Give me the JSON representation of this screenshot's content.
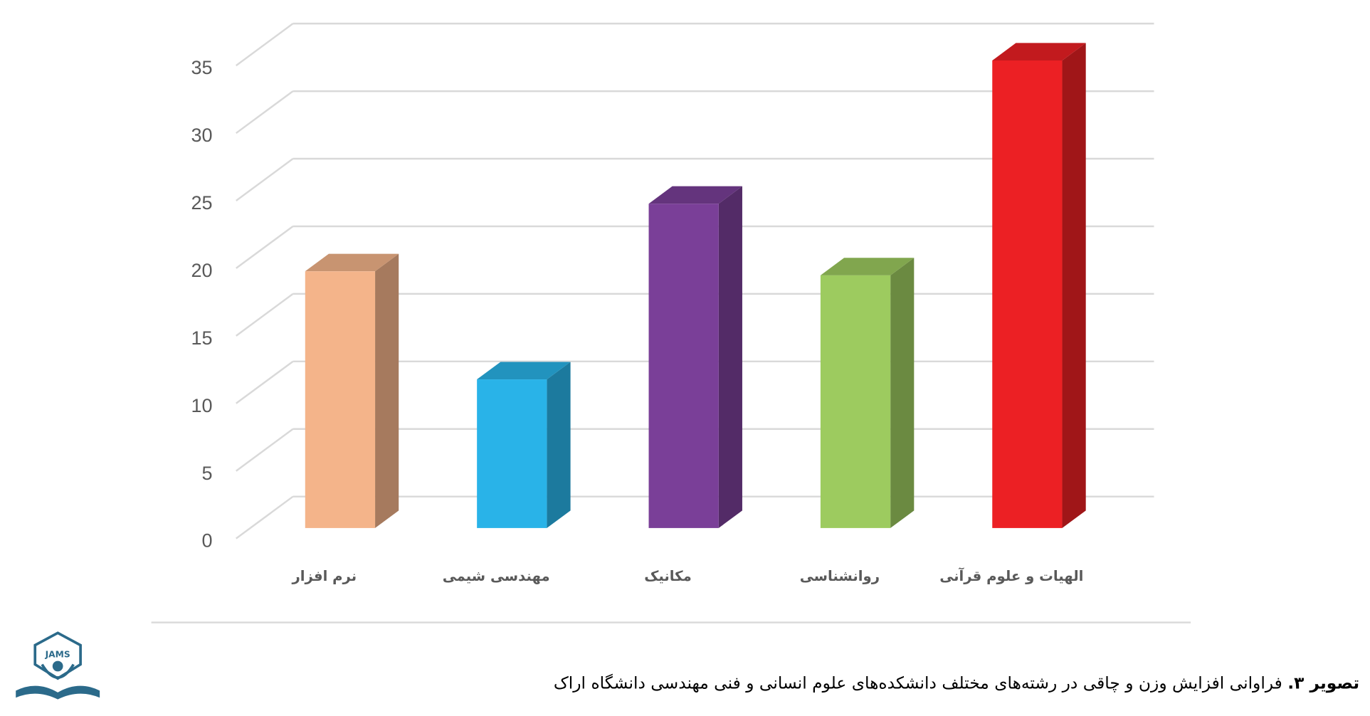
{
  "chart_data": {
    "type": "bar",
    "categories": [
      "نرم افزار",
      "مهندسی شیمی",
      "مکانیک",
      "روانشناسی",
      "الهیات و علوم قرآنی"
    ],
    "values": [
      19,
      11,
      24,
      18.7,
      34.6
    ],
    "colors": [
      "#f4b48a",
      "#29b3e8",
      "#7a3f98",
      "#9dcb5f",
      "#ec2024"
    ],
    "ylim": [
      0,
      35
    ],
    "yticks": [
      0,
      5,
      10,
      15,
      20,
      25,
      30,
      35
    ],
    "grid": true
  },
  "caption": {
    "label": "تصویر ۳.",
    "text": "فراوانی افزایش وزن و چاقی در رشته‌های مختلف دانشکده‌های علوم انسانی و فنی مهندسی دانشگاه اراک"
  },
  "logo": {
    "text": "JAMS"
  }
}
